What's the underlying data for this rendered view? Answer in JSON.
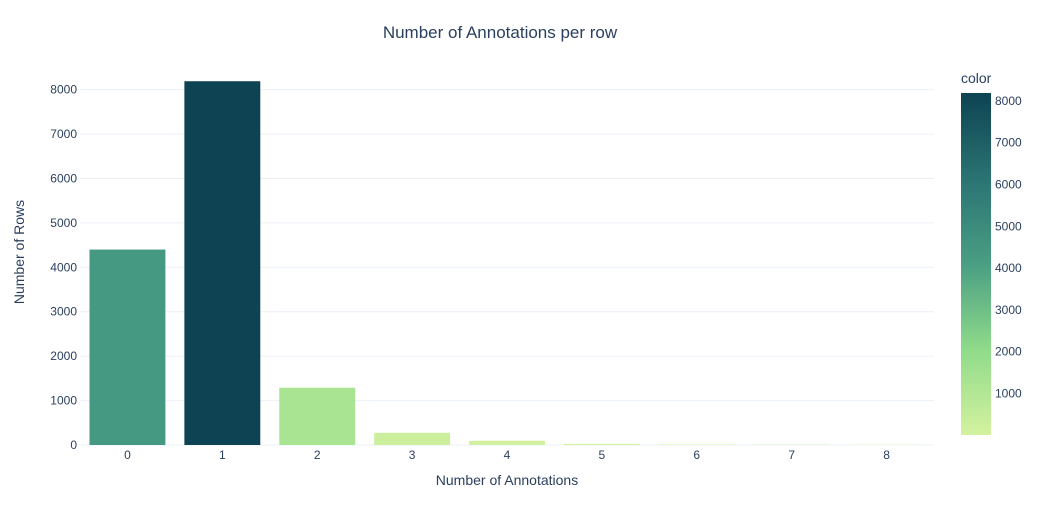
{
  "chart_data": {
    "type": "bar",
    "title": "Number of Annotations per row",
    "xlabel": "Number of Annotations",
    "ylabel": "Number of Rows",
    "categories": [
      "0",
      "1",
      "2",
      "3",
      "4",
      "5",
      "6",
      "7",
      "8"
    ],
    "values": [
      4400,
      8190,
      1290,
      275,
      95,
      25,
      12,
      8,
      5
    ],
    "ylim": [
      0,
      8200
    ],
    "yticks": [
      "0",
      "1000",
      "2000",
      "3000",
      "4000",
      "5000",
      "6000",
      "7000",
      "8000"
    ],
    "grid": true,
    "colorbar": {
      "title": "color",
      "ticks": [
        "1000",
        "2000",
        "3000",
        "4000",
        "5000",
        "6000",
        "7000",
        "8000"
      ],
      "range": [
        5,
        8190
      ],
      "colorscale": [
        "#d4f29f",
        "#8fdb8a",
        "#4a9e83",
        "#2a7373",
        "#0d4352"
      ]
    }
  }
}
